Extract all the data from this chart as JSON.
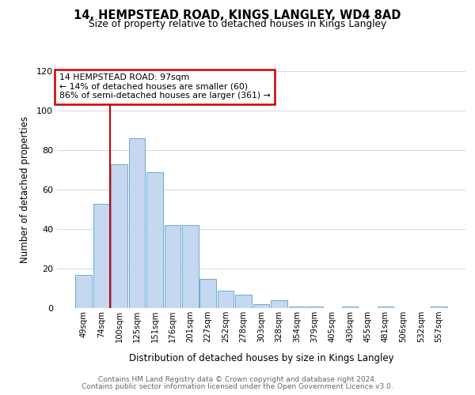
{
  "title": "14, HEMPSTEAD ROAD, KINGS LANGLEY, WD4 8AD",
  "subtitle": "Size of property relative to detached houses in Kings Langley",
  "xlabel": "Distribution of detached houses by size in Kings Langley",
  "ylabel": "Number of detached properties",
  "bar_labels": [
    "49sqm",
    "74sqm",
    "100sqm",
    "125sqm",
    "151sqm",
    "176sqm",
    "201sqm",
    "227sqm",
    "252sqm",
    "278sqm",
    "303sqm",
    "328sqm",
    "354sqm",
    "379sqm",
    "405sqm",
    "430sqm",
    "455sqm",
    "481sqm",
    "506sqm",
    "532sqm",
    "557sqm"
  ],
  "bar_values": [
    17,
    53,
    73,
    86,
    69,
    42,
    42,
    15,
    9,
    7,
    2,
    4,
    1,
    1,
    0,
    1,
    0,
    1,
    0,
    0,
    1
  ],
  "bar_color": "#c5d8f0",
  "bar_edge_color": "#6aaad4",
  "vline_color": "#cc0000",
  "vline_x": 1.5,
  "annotation_title": "14 HEMPSTEAD ROAD: 97sqm",
  "annotation_line1": "← 14% of detached houses are smaller (60)",
  "annotation_line2": "86% of semi-detached houses are larger (361) →",
  "annotation_box_color": "#cc0000",
  "ylim": [
    0,
    120
  ],
  "yticks": [
    0,
    20,
    40,
    60,
    80,
    100,
    120
  ],
  "footer1": "Contains HM Land Registry data © Crown copyright and database right 2024.",
  "footer2": "Contains public sector information licensed under the Open Government Licence v3.0.",
  "background_color": "#ffffff",
  "grid_color": "#d0dce8"
}
